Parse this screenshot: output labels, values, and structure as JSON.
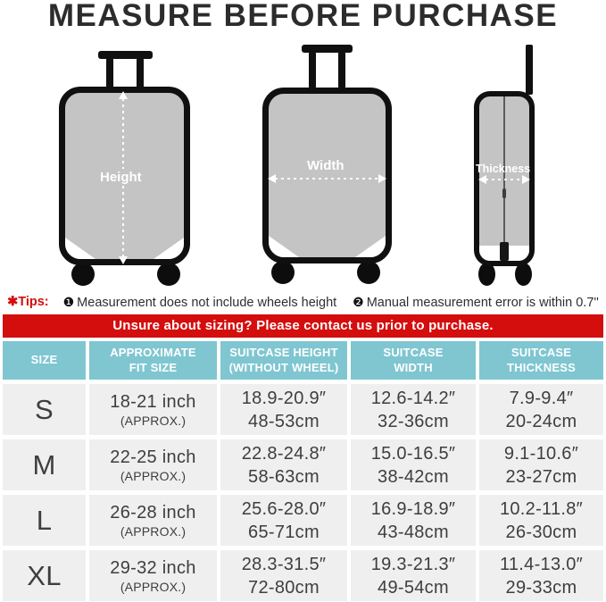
{
  "title": "MEASURE BEFORE PURCHASE",
  "colors": {
    "accent_red": "#d40d0d",
    "header_teal": "#7fc6d1",
    "cell_gray": "#efefef",
    "case_gray": "#c4c4c4"
  },
  "diagram": {
    "height_label": "Height",
    "width_label": "Width",
    "thickness_label": "Thickness"
  },
  "tips": {
    "label": "✱Tips:",
    "items": [
      {
        "bullet": "❶",
        "text": "Measurement does not include wheels height"
      },
      {
        "bullet": "❷",
        "text": "Manual measurement error is within 0.7''"
      }
    ]
  },
  "banner": {
    "text": "Unsure about sizing? Please contact us prior to purchase."
  },
  "table": {
    "columns": [
      "SIZE",
      "APPROXIMATE\nFIT SIZE",
      "SUITCASE HEIGHT\n(WITHOUT WHEEL)",
      "SUITCASE\nWIDTH",
      "SUITCASE\nTHICKNESS"
    ],
    "rows": [
      {
        "size": "S",
        "cells": [
          [
            "18-21 inch",
            "(APPROX.)"
          ],
          [
            "18.9-20.9″",
            "48-53cm"
          ],
          [
            "12.6-14.2″",
            "32-36cm"
          ],
          [
            "7.9-9.4″",
            "20-24cm"
          ]
        ]
      },
      {
        "size": "M",
        "cells": [
          [
            "22-25 inch",
            "(APPROX.)"
          ],
          [
            "22.8-24.8″",
            "58-63cm"
          ],
          [
            "15.0-16.5″",
            "38-42cm"
          ],
          [
            "9.1-10.6″",
            "23-27cm"
          ]
        ]
      },
      {
        "size": "L",
        "cells": [
          [
            "26-28 inch",
            "(APPROX.)"
          ],
          [
            "25.6-28.0″",
            "65-71cm"
          ],
          [
            "16.9-18.9″",
            "43-48cm"
          ],
          [
            "10.2-11.8″",
            "26-30cm"
          ]
        ]
      },
      {
        "size": "XL",
        "cells": [
          [
            "29-32 inch",
            "(APPROX.)"
          ],
          [
            "28.3-31.5″",
            "72-80cm"
          ],
          [
            "19.3-21.3″",
            "49-54cm"
          ],
          [
            "11.4-13.0″",
            "29-33cm"
          ]
        ]
      }
    ]
  }
}
